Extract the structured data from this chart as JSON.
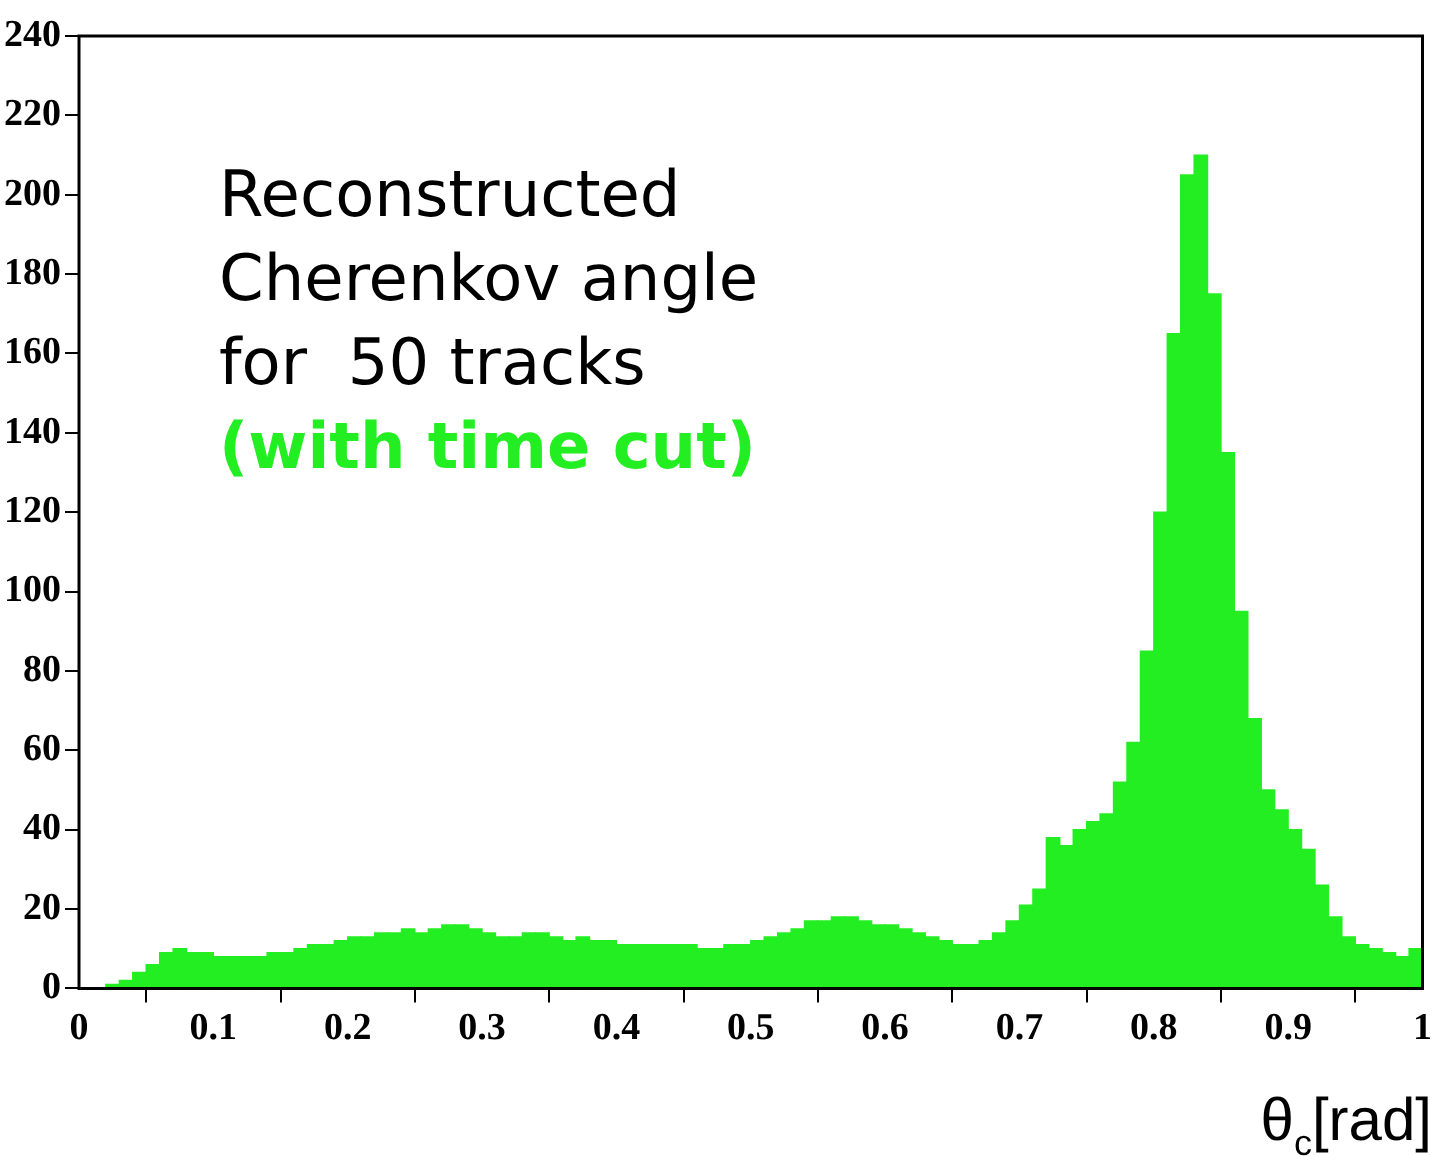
{
  "chart_data": {
    "type": "histogram",
    "xlabel": "θ$_{c}$[rad]",
    "annotations": [
      "Reconstructed",
      "Cherenkov angle",
      "for  50 tracks",
      "(with time cut)"
    ],
    "color": "#22ee22",
    "bins": [
      0,
      0.01,
      0.02,
      0.03,
      0.04,
      0.05,
      0.06,
      0.07,
      0.08,
      0.09,
      0.1,
      0.11,
      0.12,
      0.13,
      0.14,
      0.15,
      0.16,
      0.17,
      0.18,
      0.19,
      0.2,
      0.21,
      0.22,
      0.23,
      0.24,
      0.25,
      0.26,
      0.27,
      0.28,
      0.29,
      0.3,
      0.31,
      0.32,
      0.33,
      0.34,
      0.35,
      0.36,
      0.37,
      0.38,
      0.39,
      0.4,
      0.41,
      0.42,
      0.43,
      0.44,
      0.45,
      0.46,
      0.47,
      0.48,
      0.49,
      0.5,
      0.51,
      0.52,
      0.53,
      0.54,
      0.55,
      0.56,
      0.57,
      0.58,
      0.59,
      0.6,
      0.61,
      0.62,
      0.63,
      0.64,
      0.65,
      0.66,
      0.67,
      0.68,
      0.69,
      0.7,
      0.71,
      0.72,
      0.73,
      0.74,
      0.75,
      0.76,
      0.77,
      0.78,
      0.79,
      0.8,
      0.81,
      0.82,
      0.83,
      0.84,
      0.85,
      0.86,
      0.87,
      0.88,
      0.89,
      0.9,
      0.91,
      0.92,
      0.93,
      0.94,
      0.95,
      0.96,
      0.97,
      0.98,
      0.99,
      1
    ],
    "values": [
      0,
      0,
      1,
      2,
      4,
      6,
      9,
      10,
      9,
      9,
      8,
      8,
      8,
      8,
      9,
      9,
      10,
      11,
      11,
      12,
      13,
      13,
      14,
      14,
      15,
      14,
      15,
      16,
      16,
      15,
      14,
      13,
      13,
      14,
      14,
      13,
      12,
      13,
      12,
      12,
      11,
      11,
      11,
      11,
      11,
      11,
      10,
      10,
      11,
      11,
      12,
      13,
      14,
      15,
      17,
      17,
      18,
      18,
      17,
      16,
      16,
      15,
      14,
      13,
      12,
      11,
      11,
      12,
      14,
      17,
      21,
      25,
      38,
      36,
      40,
      42,
      44,
      52,
      62,
      85,
      120,
      165,
      205,
      210,
      175,
      135,
      95,
      68,
      50,
      45,
      40,
      35,
      26,
      18,
      13,
      11,
      10,
      9,
      8,
      10
    ],
    "xlim": [
      0,
      1
    ],
    "xticks": [
      0,
      0.1,
      0.2,
      0.3,
      0.4,
      0.5,
      0.6,
      0.7,
      0.8,
      0.9,
      1
    ],
    "ylim": [
      0,
      240
    ],
    "yticks": [
      0,
      20,
      40,
      60,
      80,
      100,
      120,
      140,
      160,
      180,
      200,
      220,
      240
    ]
  }
}
